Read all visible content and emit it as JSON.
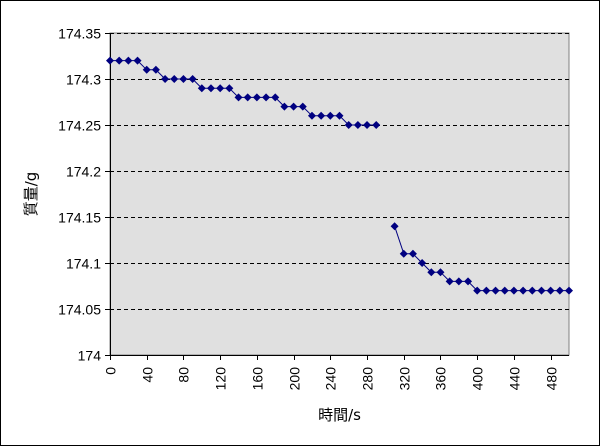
{
  "chart_data": {
    "type": "line",
    "title": "",
    "xlabel": "時間/s",
    "ylabel": "質量/g",
    "xlim": [
      0,
      500
    ],
    "ylim": [
      174,
      174.35
    ],
    "x_tick_values": [
      0,
      40,
      80,
      120,
      160,
      200,
      240,
      280,
      320,
      360,
      400,
      440,
      480
    ],
    "x_tick_labels": [
      "0",
      "40",
      "80",
      "120",
      "160",
      "200",
      "240",
      "280",
      "320",
      "360",
      "400",
      "440",
      "480"
    ],
    "y_tick_values": [
      174,
      174.05,
      174.1,
      174.15,
      174.2,
      174.25,
      174.3,
      174.35
    ],
    "y_tick_labels": [
      "174",
      "174.05",
      "174.1",
      "174.15",
      "174.2",
      "174.25",
      "174.3",
      "174.35"
    ],
    "grid": "horizontal dashed",
    "legend": "none",
    "colors": {
      "series": "#000080",
      "plot_background": "#e0e0e0"
    },
    "marker": "diamond",
    "series": [
      {
        "segment": 1,
        "x": [
          0,
          10,
          20,
          30,
          40,
          50,
          60,
          70,
          80,
          90,
          100,
          110,
          120,
          130,
          140,
          150,
          160,
          170,
          180,
          190,
          200,
          210,
          220,
          230,
          240,
          250,
          260,
          270,
          280,
          290
        ],
        "values": [
          174.32,
          174.32,
          174.32,
          174.32,
          174.31,
          174.31,
          174.3,
          174.3,
          174.3,
          174.3,
          174.29,
          174.29,
          174.29,
          174.29,
          174.28,
          174.28,
          174.28,
          174.28,
          174.28,
          174.27,
          174.27,
          174.27,
          174.26,
          174.26,
          174.26,
          174.26,
          174.25,
          174.25,
          174.25,
          174.25
        ]
      },
      {
        "segment": 2,
        "x": [
          310,
          320,
          330,
          340,
          350,
          360,
          370,
          380,
          390,
          400,
          410,
          420,
          430,
          440,
          450,
          460,
          470,
          480,
          490,
          500
        ],
        "values": [
          174.14,
          174.11,
          174.11,
          174.1,
          174.09,
          174.09,
          174.08,
          174.08,
          174.08,
          174.07,
          174.07,
          174.07,
          174.07,
          174.07,
          174.07,
          174.07,
          174.07,
          174.07,
          174.07,
          174.07
        ]
      }
    ]
  }
}
